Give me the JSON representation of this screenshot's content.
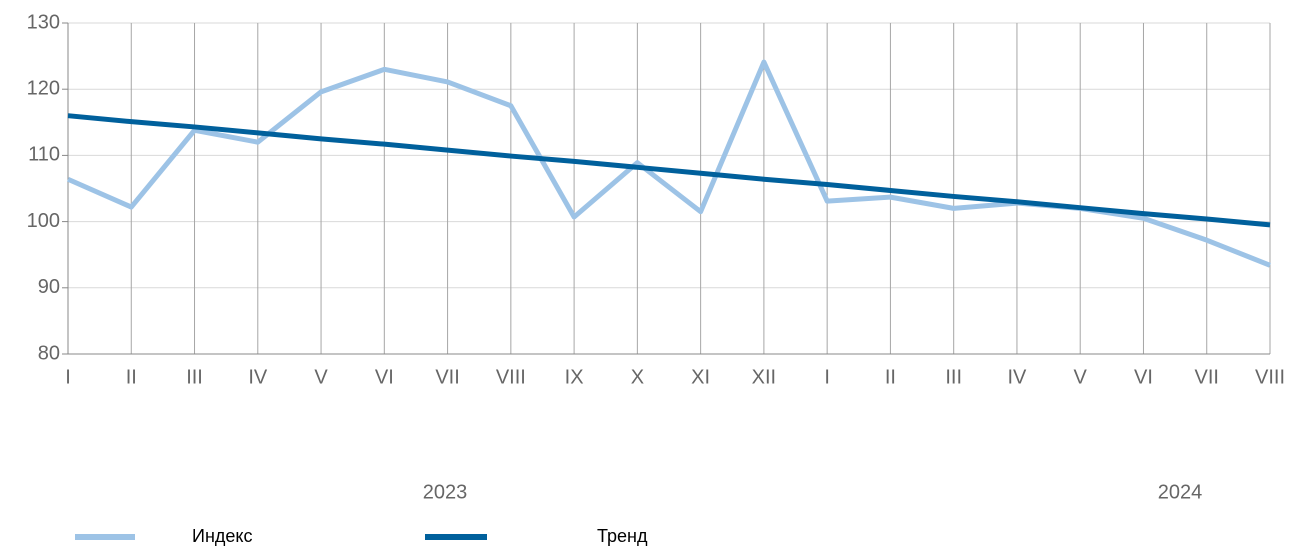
{
  "chart_data": {
    "type": "line",
    "categories": [
      "I",
      "II",
      "III",
      "IV",
      "V",
      "VI",
      "VII",
      "VIII",
      "IX",
      "X",
      "XI",
      "XII",
      "I",
      "II",
      "III",
      "IV",
      "V",
      "VI",
      "VII",
      "VIII"
    ],
    "x_groups": [
      "2023",
      "2024"
    ],
    "series": [
      {
        "name": "Индекс",
        "color": "#9dc3e6",
        "values": [
          106.4,
          102.2,
          113.8,
          112,
          119.6,
          123,
          121.1,
          117.5,
          100.7,
          108.9,
          101.5,
          124.1,
          103.1,
          103.7,
          102,
          102.8,
          102,
          100.5,
          97.2,
          93.4
        ]
      },
      {
        "name": "Тренд",
        "color": "#00609c",
        "values": [
          116,
          115.1,
          114.3,
          113.4,
          112.5,
          111.7,
          110.8,
          109.9,
          109.1,
          108.2,
          107.3,
          106.4,
          105.6,
          104.7,
          103.8,
          103,
          102.1,
          101.2,
          100.4,
          99.5
        ]
      }
    ],
    "ylim": [
      80,
      130
    ],
    "yticks": [
      80,
      90,
      100,
      110,
      120,
      130
    ],
    "grid": true
  }
}
